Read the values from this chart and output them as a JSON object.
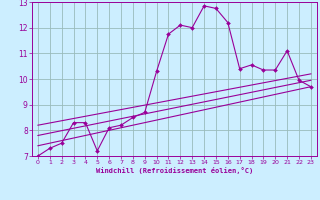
{
  "title": "",
  "xlabel": "Windchill (Refroidissement éolien,°C)",
  "bg_color": "#cceeff",
  "grid_color": "#99bbbb",
  "line_color": "#990099",
  "spine_color": "#990099",
  "xlim": [
    -0.5,
    23.5
  ],
  "ylim": [
    7,
    13
  ],
  "yticks": [
    7,
    8,
    9,
    10,
    11,
    12,
    13
  ],
  "xticks": [
    0,
    1,
    2,
    3,
    4,
    5,
    6,
    7,
    8,
    9,
    10,
    11,
    12,
    13,
    14,
    15,
    16,
    17,
    18,
    19,
    20,
    21,
    22,
    23
  ],
  "main_x": [
    0,
    1,
    2,
    3,
    4,
    5,
    6,
    7,
    8,
    9,
    10,
    11,
    12,
    13,
    14,
    15,
    16,
    17,
    18,
    19,
    20,
    21,
    22,
    23
  ],
  "main_y": [
    7.0,
    7.3,
    7.5,
    8.3,
    8.3,
    7.2,
    8.1,
    8.2,
    8.5,
    8.7,
    10.3,
    11.75,
    12.1,
    12.0,
    12.85,
    12.75,
    12.2,
    10.4,
    10.55,
    10.35,
    10.35,
    11.1,
    9.95,
    9.7
  ],
  "line2_x": [
    0,
    23
  ],
  "line2_y": [
    7.4,
    9.7
  ],
  "line3_x": [
    0,
    23
  ],
  "line3_y": [
    7.8,
    9.95
  ],
  "line4_x": [
    0,
    23
  ],
  "line4_y": [
    8.2,
    10.2
  ]
}
